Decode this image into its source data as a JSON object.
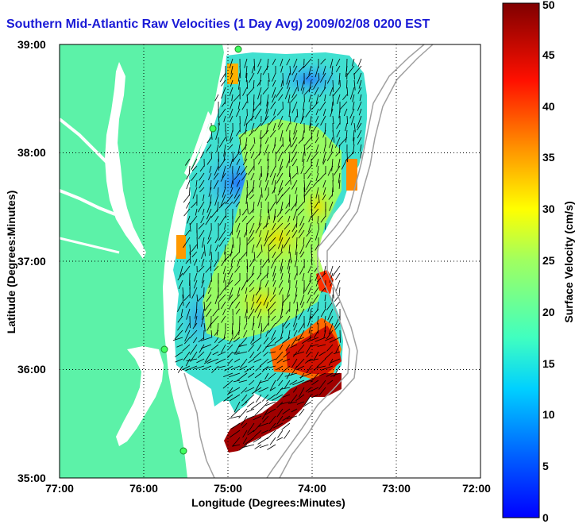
{
  "title": "Southern Mid-Atlantic Raw Velocities (1 Day Avg) 2009/02/08 0200 EST",
  "xlabel": "Longitude (Degrees:Minutes)",
  "ylabel": "Latitude (Degrees:Minutes)",
  "colorbar_label": "Surface Velocity (cm/s)",
  "x_ticks": [
    "77:00",
    "76:00",
    "75:00",
    "74:00",
    "73:00",
    "72:00"
  ],
  "y_ticks": [
    "39:00",
    "38:00",
    "37:00",
    "36:00",
    "35:00"
  ],
  "colorbar_ticks": [
    "0",
    "5",
    "10",
    "15",
    "20",
    "25",
    "30",
    "35",
    "40",
    "45",
    "50"
  ],
  "colors": {
    "land": "#5cf2a8",
    "title": "#1a1ad6",
    "coast_contour": "#a0a0a0"
  },
  "map_data": {
    "lon_range": [
      -77,
      -72
    ],
    "lat_range": [
      35,
      39
    ],
    "velocity_range_cm_s": [
      0,
      50
    ],
    "grid": "dotted"
  }
}
